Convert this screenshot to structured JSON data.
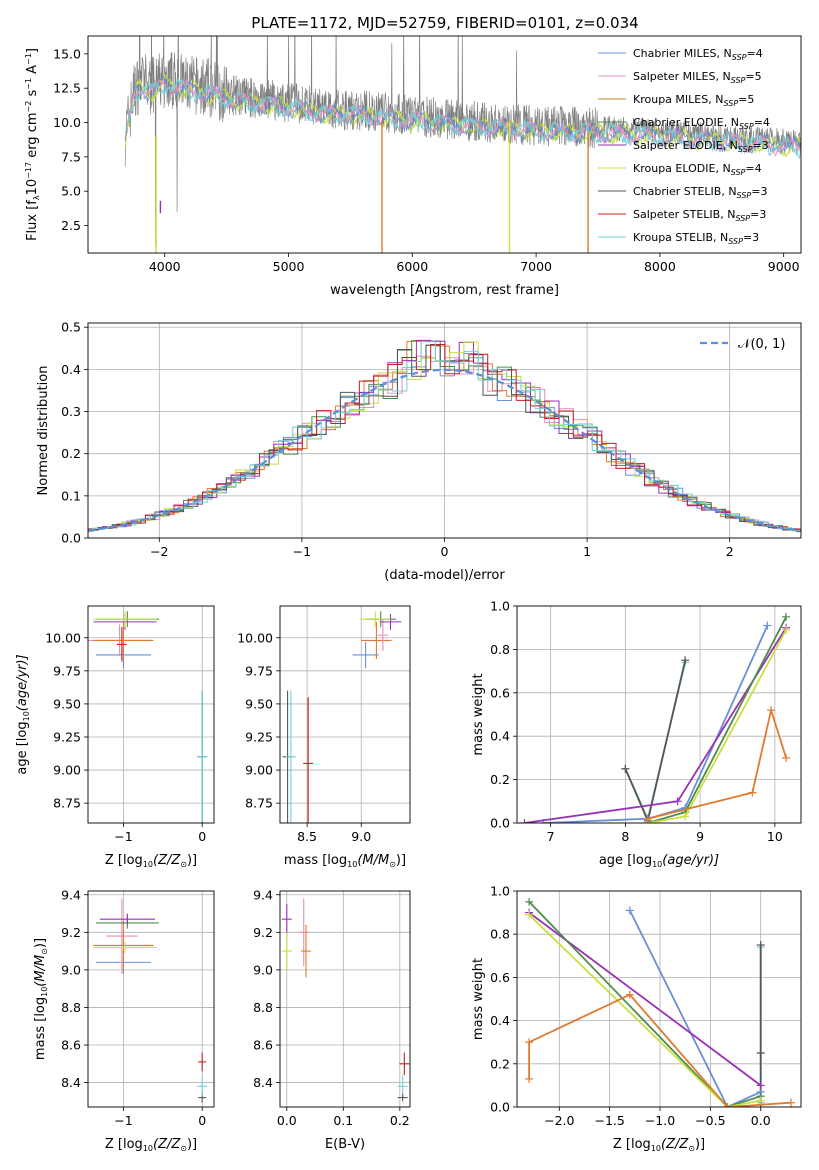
{
  "figure": {
    "title": "PLATE=1172, MJD=52759, FIBERID=0101, z=0.034"
  },
  "colors": {
    "Chabrier MILES": "#6a8fd8",
    "Salpeter MILES": "#e68fc0",
    "Kroupa MILES": "#b58a1a",
    "Chabrier ELODIE": "#4f8a4f",
    "Salpeter ELODIE": "#9b30b8",
    "Kroupa ELODIE": "#c8e040",
    "Chabrier STELIB": "#555555",
    "Salpeter STELIB": "#c81e1e",
    "Kroupa STELIB": "#6fd0d8",
    "orange": "#e07a30",
    "normal": "#5b8fd8",
    "data": "#808080"
  },
  "chart_data": [
    {
      "id": "spectrum",
      "type": "line",
      "title": "PLATE=1172, MJD=52759, FIBERID=0101, z=0.034",
      "xlabel": "wavelength [Angstrom, rest frame]",
      "ylabel_main": "Flux [f",
      "ylabel_lambda": "λ",
      "ylabel_mid": "10",
      "ylabel_exp1": "−17",
      "ylabel_unit": " erg cm",
      "ylabel_exp2": "−2",
      "ylabel_s": " s",
      "ylabel_exp3": "−1",
      "ylabel_A": " A",
      "ylabel_exp4": "−1",
      "ylabel_end": "]",
      "xlim": [
        3380,
        9140
      ],
      "ylim": [
        0.5,
        16.3
      ],
      "xticks": [
        4000,
        5000,
        6000,
        7000,
        8000,
        9000
      ],
      "yticks": [
        2.5,
        5.0,
        7.5,
        10.0,
        12.5,
        15.0
      ],
      "ytick_labels": [
        "2.5",
        "5.0",
        "7.5",
        "10.0",
        "12.5",
        "15.0"
      ],
      "legend_position": "upper right",
      "grid": false,
      "data_envelope": [
        [
          3680,
          9.0
        ],
        [
          3750,
          12.2
        ],
        [
          3800,
          13.0
        ],
        [
          3900,
          12.6
        ],
        [
          4000,
          13.2
        ],
        [
          4100,
          13.0
        ],
        [
          4200,
          12.7
        ],
        [
          4300,
          12.6
        ],
        [
          4400,
          12.4
        ],
        [
          4500,
          12.1
        ],
        [
          4700,
          11.8
        ],
        [
          5000,
          11.5
        ],
        [
          5300,
          11.0
        ],
        [
          5600,
          10.9
        ],
        [
          6000,
          10.5
        ],
        [
          6500,
          10.1
        ],
        [
          7000,
          9.8
        ],
        [
          7500,
          9.6
        ],
        [
          8000,
          9.4
        ],
        [
          8500,
          9.0
        ],
        [
          9000,
          8.7
        ],
        [
          9140,
          8.6
        ]
      ],
      "legend": [
        {
          "name": "Chabrier MILES",
          "nssp": "4"
        },
        {
          "name": "Salpeter MILES",
          "nssp": "5"
        },
        {
          "name": "Kroupa MILES",
          "nssp": "5"
        },
        {
          "name": "Chabrier ELODIE",
          "nssp": "4"
        },
        {
          "name": "Salpeter ELODIE",
          "nssp": "3"
        },
        {
          "name": "Kroupa ELODIE",
          "nssp": "4"
        },
        {
          "name": "Chabrier STELIB",
          "nssp": "3"
        },
        {
          "name": "Salpeter STELIB",
          "nssp": "3"
        },
        {
          "name": "Kroupa STELIB",
          "nssp": "3"
        }
      ],
      "legend_prefix": "N",
      "legend_sub": "SSP",
      "legend_eq": "="
    },
    {
      "id": "residuals",
      "type": "line",
      "xlabel": "(data-model)/error",
      "ylabel": "Normed distribution",
      "xlim": [
        -2.5,
        2.5
      ],
      "ylim": [
        0,
        0.51
      ],
      "xticks": [
        -2,
        -1,
        0,
        1,
        2
      ],
      "xtick_labels": [
        "−2",
        "−1",
        "0",
        "1",
        "2"
      ],
      "yticks": [
        0.0,
        0.1,
        0.2,
        0.3,
        0.4,
        0.5
      ],
      "ytick_labels": [
        "0.0",
        "0.1",
        "0.2",
        "0.3",
        "0.4",
        "0.5"
      ],
      "grid": true,
      "legend_label": "𝒩(0, 1)",
      "legend_position": "upper right",
      "bin_width": 0.1
    },
    {
      "id": "age_vs_Z",
      "type": "scatter",
      "xlabel_main": "Z [log",
      "xlabel_sub": "10",
      "xlabel_end": "(Z/Z",
      "xlabel_sun": "⊙",
      "xlabel_close": ")]",
      "ylabel_main": "age  [log",
      "ylabel_sub": "10",
      "ylabel_end": "(age/yr)]",
      "xlim": [
        -1.45,
        0.15
      ],
      "ylim": [
        8.6,
        10.24
      ],
      "xticks": [
        -1,
        0
      ],
      "xtick_labels": [
        "−1",
        "0"
      ],
      "yticks": [
        8.75,
        9.0,
        9.25,
        9.5,
        9.75,
        10.0
      ],
      "ytick_labels": [
        "8.75",
        "9.00",
        "9.25",
        "9.50",
        "9.75",
        "10.00"
      ],
      "grid": true,
      "points": [
        {
          "c": "Chabrier MILES",
          "x": -1.0,
          "y": 9.87,
          "xerr": 0.35,
          "yerr": 0.1
        },
        {
          "c": "Salpeter MILES",
          "x": -1.05,
          "y": 9.98,
          "xerr": 0.4,
          "yerr": 0.12
        },
        {
          "c": "orange",
          "x": -1.0,
          "y": 9.98,
          "xerr": 0.38,
          "yerr": 0.14
        },
        {
          "c": "Chabrier ELODIE",
          "x": -0.95,
          "y": 10.14,
          "xerr": 0.4,
          "yerr": 0.06
        },
        {
          "c": "Salpeter ELODIE",
          "x": -0.98,
          "y": 10.12,
          "xerr": 0.4,
          "yerr": 0.06
        },
        {
          "c": "Kroupa ELODIE",
          "x": -0.98,
          "y": 10.14,
          "xerr": 0.4,
          "yerr": 0.06
        },
        {
          "c": "Salpeter STELIB",
          "x": -1.02,
          "y": 9.95,
          "xerr": 0.0,
          "yerr": 0.13
        },
        {
          "c": "Chabrier STELIB",
          "x": 0.0,
          "y": 9.1,
          "xerr": 0.0,
          "yerr": 0.5
        },
        {
          "c": "Kroupa STELIB",
          "x": 0.0,
          "y": 9.1,
          "xerr": 0.0,
          "yerr": 0.5
        }
      ]
    },
    {
      "id": "age_vs_mass",
      "type": "scatter",
      "xlabel_main": "mass [log",
      "xlabel_sub": "10",
      "xlabel_end": "(M/M",
      "xlabel_sun": "⊙",
      "xlabel_close": ")]",
      "xlim": [
        8.25,
        9.45
      ],
      "ylim": [
        8.6,
        10.24
      ],
      "xticks": [
        8.5,
        9.0
      ],
      "xtick_labels": [
        "8.5",
        "9.0"
      ],
      "yticks": [
        8.75,
        9.0,
        9.25,
        9.5,
        9.75,
        10.0
      ],
      "ytick_labels": [
        "8.75",
        "9.00",
        "9.25",
        "9.50",
        "9.75",
        "10.00"
      ],
      "grid": true,
      "points": [
        {
          "c": "Chabrier MILES",
          "x": 9.04,
          "y": 9.87,
          "xerr": 0.12,
          "yerr": 0.1
        },
        {
          "c": "orange",
          "x": 9.14,
          "y": 9.98,
          "xerr": 0.14,
          "yerr": 0.14
        },
        {
          "c": "Salpeter MILES",
          "x": 9.2,
          "y": 10.02,
          "xerr": 0.05,
          "yerr": 0.12
        },
        {
          "c": "Chabrier ELODIE",
          "x": 9.18,
          "y": 10.14,
          "xerr": 0.14,
          "yerr": 0.06
        },
        {
          "c": "Salpeter ELODIE",
          "x": 9.27,
          "y": 10.12,
          "xerr": 0.1,
          "yerr": 0.06
        },
        {
          "c": "Kroupa ELODIE",
          "x": 9.13,
          "y": 10.14,
          "xerr": 0.14,
          "yerr": 0.06
        },
        {
          "c": "Chabrier STELIB",
          "x": 8.32,
          "y": 9.1,
          "xerr": 0.0,
          "yerr": 0.5
        },
        {
          "c": "Kroupa STELIB",
          "x": 8.35,
          "y": 9.1,
          "xerr": 0.0,
          "yerr": 0.5
        },
        {
          "c": "Salpeter STELIB",
          "x": 8.51,
          "y": 9.05,
          "xerr": 0.0,
          "yerr": 0.5
        }
      ]
    },
    {
      "id": "weight_vs_age",
      "type": "line",
      "xlabel_main": "age  [log",
      "xlabel_sub": "10",
      "xlabel_end": "(age/yr)]",
      "ylabel": "mass weight",
      "xlim": [
        6.55,
        10.35
      ],
      "ylim": [
        0,
        1.0
      ],
      "xticks": [
        7,
        8,
        9,
        10
      ],
      "xtick_labels": [
        "7",
        "8",
        "9",
        "10"
      ],
      "yticks": [
        0.0,
        0.2,
        0.4,
        0.6,
        0.8,
        1.0
      ],
      "ytick_labels": [
        "0.0",
        "0.2",
        "0.4",
        "0.6",
        "0.8",
        "1.0"
      ],
      "grid": true,
      "series": [
        {
          "c": "Kroupa STELIB",
          "x": [
            8.0,
            8.3,
            8.8
          ],
          "y": [
            0.25,
            0.02,
            0.74
          ]
        },
        {
          "c": "Chabrier STELIB",
          "x": [
            8.0,
            8.3,
            8.8
          ],
          "y": [
            0.25,
            0.01,
            0.75
          ]
        },
        {
          "c": "Chabrier MILES",
          "x": [
            6.9,
            8.3,
            8.8,
            9.9
          ],
          "y": [
            0.0,
            0.02,
            0.07,
            0.91
          ]
        },
        {
          "c": "Salpeter ELODIE",
          "x": [
            6.65,
            8.7,
            10.15
          ],
          "y": [
            0.0,
            0.1,
            0.9
          ]
        },
        {
          "c": "Chabrier ELODIE",
          "x": [
            8.3,
            8.8,
            10.15
          ],
          "y": [
            0.0,
            0.05,
            0.95
          ]
        },
        {
          "c": "Kroupa ELODIE",
          "x": [
            8.3,
            8.8,
            10.15
          ],
          "y": [
            0.0,
            0.03,
            0.89
          ]
        },
        {
          "c": "orange",
          "x": [
            8.3,
            9.7,
            9.95,
            10.15
          ],
          "y": [
            0.02,
            0.14,
            0.52,
            0.3
          ]
        }
      ]
    },
    {
      "id": "mass_vs_Z",
      "type": "scatter",
      "xlabel_main": "Z [log",
      "xlabel_sub": "10",
      "xlabel_end": "(Z/Z",
      "xlabel_sun": "⊙",
      "xlabel_close": ")]",
      "ylabel_main": "mass [log",
      "ylabel_sub": "10",
      "ylabel_end": "(M/M",
      "ylabel_sun": "⊙",
      "ylabel_close": ")]",
      "xlim": [
        -1.45,
        0.15
      ],
      "ylim": [
        8.27,
        9.42
      ],
      "xticks": [
        -1,
        0
      ],
      "xtick_labels": [
        "−1",
        "0"
      ],
      "yticks": [
        8.4,
        8.6,
        8.8,
        9.0,
        9.2,
        9.4
      ],
      "ytick_labels": [
        "8.4",
        "8.6",
        "8.8",
        "9.0",
        "9.2",
        "9.4"
      ],
      "grid": true,
      "points": [
        {
          "c": "Chabrier MILES",
          "x": -1.0,
          "y": 9.04,
          "xerr": 0.35,
          "yerr": 0.06
        },
        {
          "c": "Salpeter MILES",
          "x": -1.02,
          "y": 9.18,
          "xerr": 0.2,
          "yerr": 0.2
        },
        {
          "c": "orange",
          "x": -1.0,
          "y": 9.13,
          "xerr": 0.38,
          "yerr": 0.13
        },
        {
          "c": "Chabrier ELODIE",
          "x": -0.95,
          "y": 9.25,
          "xerr": 0.4,
          "yerr": 0.03
        },
        {
          "c": "Salpeter ELODIE",
          "x": -0.95,
          "y": 9.27,
          "xerr": 0.35,
          "yerr": 0.03
        },
        {
          "c": "Kroupa ELODIE",
          "x": -0.98,
          "y": 9.12,
          "xerr": 0.4,
          "yerr": 0.03
        },
        {
          "c": "Chabrier STELIB",
          "x": 0.0,
          "y": 8.32,
          "xerr": 0.05,
          "yerr": 0.0
        },
        {
          "c": "Kroupa STELIB",
          "x": 0.0,
          "y": 8.38,
          "xerr": 0.0,
          "yerr": 0.05
        },
        {
          "c": "Salpeter STELIB",
          "x": 0.0,
          "y": 8.51,
          "xerr": 0.05,
          "yerr": 0.05
        }
      ]
    },
    {
      "id": "mass_vs_EBV",
      "type": "scatter",
      "xlabel": "E(B-V)",
      "xlim": [
        -0.012,
        0.218
      ],
      "ylim": [
        8.27,
        9.42
      ],
      "xticks": [
        0.0,
        0.1,
        0.2
      ],
      "xtick_labels": [
        "0.0",
        "0.1",
        "0.2"
      ],
      "yticks": [
        8.4,
        8.6,
        8.8,
        9.0,
        9.2,
        9.4
      ],
      "ytick_labels": [
        "8.4",
        "8.6",
        "8.8",
        "9.0",
        "9.2",
        "9.4"
      ],
      "grid": true,
      "points": [
        {
          "c": "Salpeter ELODIE",
          "x": 0.0,
          "y": 9.27,
          "xerr": 0.0,
          "yerr": 0.08
        },
        {
          "c": "Kroupa ELODIE",
          "x": 0.0,
          "y": 9.1,
          "xerr": 0.0,
          "yerr": 0.1
        },
        {
          "c": "Salpeter MILES",
          "x": 0.03,
          "y": 9.2,
          "xerr": 0.0,
          "yerr": 0.18
        },
        {
          "c": "orange",
          "x": 0.034,
          "y": 9.1,
          "xerr": 0.0,
          "yerr": 0.14
        },
        {
          "c": "Salpeter STELIB",
          "x": 0.208,
          "y": 8.5,
          "xerr": 0.0,
          "yerr": 0.06
        },
        {
          "c": "Kroupa STELIB",
          "x": 0.205,
          "y": 8.38,
          "xerr": 0.0,
          "yerr": 0.06
        },
        {
          "c": "Chabrier STELIB",
          "x": 0.205,
          "y": 8.32,
          "xerr": 0.0,
          "yerr": 0.02
        }
      ]
    },
    {
      "id": "weight_vs_Z",
      "type": "line",
      "xlabel_main": "Z [log",
      "xlabel_sub": "10",
      "xlabel_end": "(Z/Z",
      "xlabel_sun": "⊙",
      "xlabel_close": ")]",
      "ylabel": "mass weight",
      "xlim": [
        -2.42,
        0.4
      ],
      "ylim": [
        0,
        1.0
      ],
      "xticks": [
        -2.0,
        -1.5,
        -1.0,
        -0.5,
        0.0
      ],
      "xtick_labels": [
        "−2.0",
        "−1.5",
        "−1.0",
        "−0.5",
        "0.0"
      ],
      "yticks": [
        0.0,
        0.2,
        0.4,
        0.6,
        0.8,
        1.0
      ],
      "ytick_labels": [
        "0.0",
        "0.2",
        "0.4",
        "0.6",
        "0.8",
        "1.0"
      ],
      "grid": true,
      "series": [
        {
          "c": "Kroupa STELIB",
          "x": [
            0.0,
            0.0,
            0.0
          ],
          "y": [
            0.02,
            0.25,
            0.74
          ]
        },
        {
          "c": "Chabrier STELIB",
          "x": [
            0.0,
            0.0,
            0.0
          ],
          "y": [
            0.01,
            0.25,
            0.75
          ]
        },
        {
          "c": "Chabrier MILES",
          "x": [
            -1.3,
            -0.33,
            0.0
          ],
          "y": [
            0.91,
            0.0,
            0.07
          ]
        },
        {
          "c": "Salpeter ELODIE",
          "x": [
            -2.3,
            0.0
          ],
          "y": [
            0.9,
            0.1
          ]
        },
        {
          "c": "Chabrier ELODIE",
          "x": [
            -2.3,
            -0.33,
            0.0
          ],
          "y": [
            0.95,
            0.0,
            0.05
          ]
        },
        {
          "c": "Kroupa ELODIE",
          "x": [
            -2.3,
            -0.33,
            0.0
          ],
          "y": [
            0.89,
            0.0,
            0.03
          ]
        },
        {
          "c": "orange",
          "x": [
            -2.3,
            -2.3,
            -1.3,
            -0.33,
            0.3
          ],
          "y": [
            0.13,
            0.3,
            0.52,
            0.0,
            0.02
          ]
        }
      ]
    }
  ]
}
